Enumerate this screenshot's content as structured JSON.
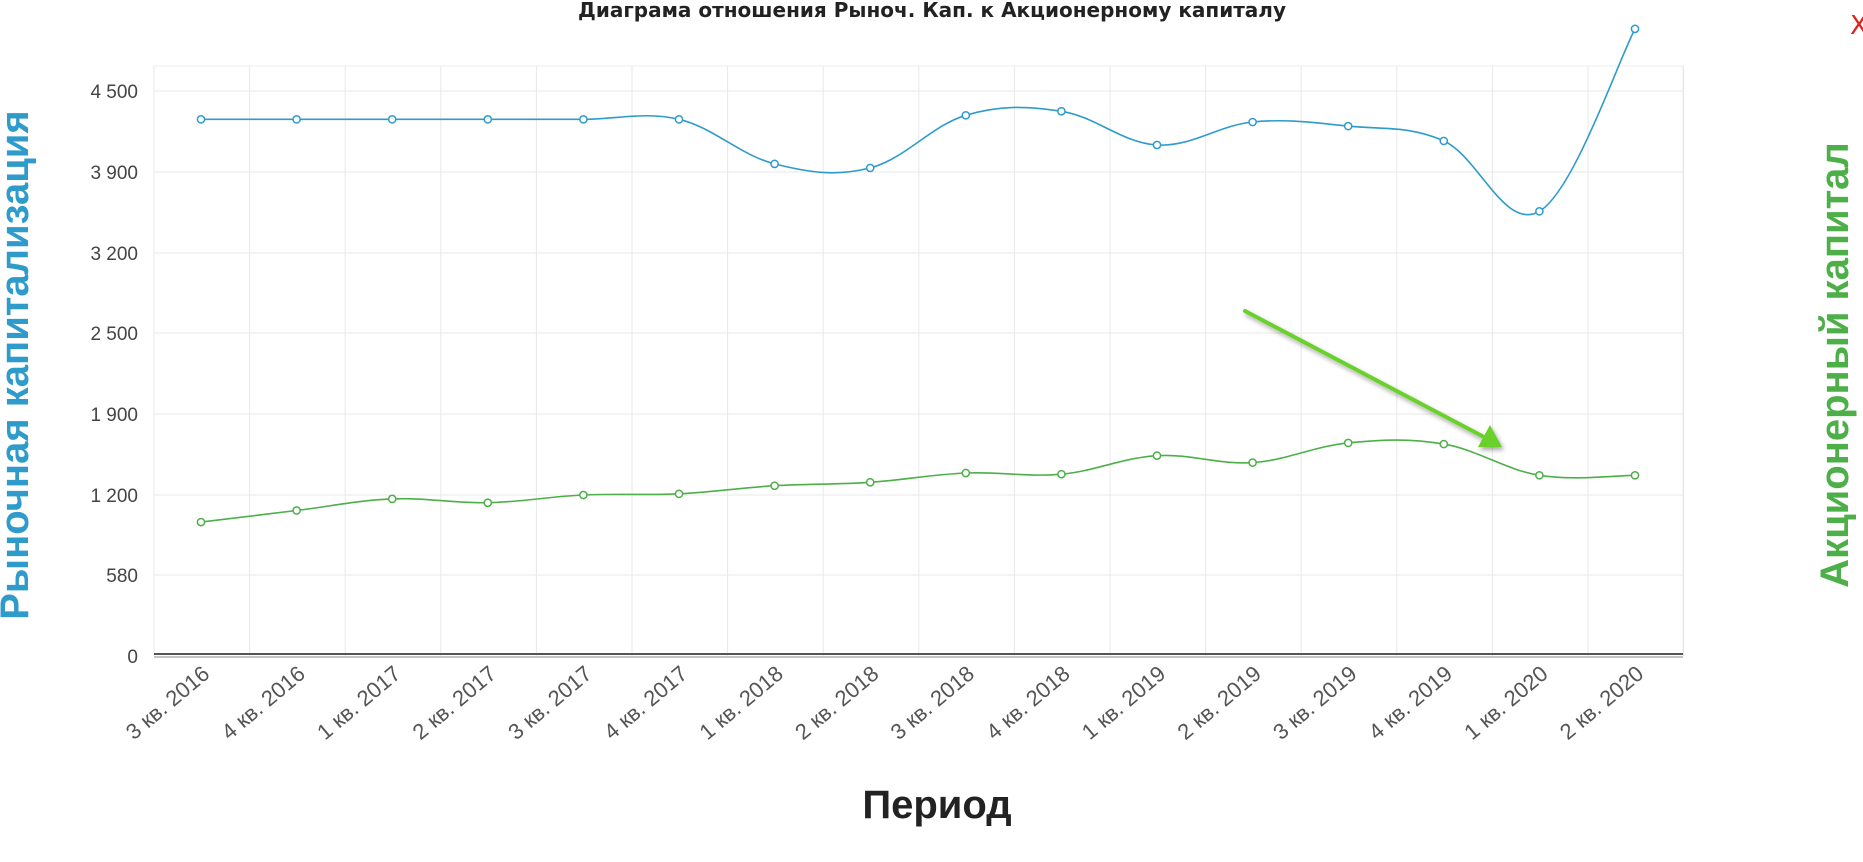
{
  "colors": {
    "market_cap": "#2e9bcb",
    "equity": "#4daf48",
    "close": "#e02020",
    "arrow": "#6ad12a"
  },
  "close_label": "X",
  "chart_data": {
    "type": "line",
    "title": "Диаграма отношения Рыноч. Кап. к Акционерному капиталу",
    "xlabel": "Период",
    "ylabel_left": "Рыночная капитализация",
    "ylabel_right": "Акционерный капитал",
    "yticks": [
      "0",
      "580",
      "1 200",
      "1 900",
      "2 500",
      "3 200",
      "3 900",
      "4 500"
    ],
    "categories": [
      "3 кв. 2016",
      "4 кв. 2016",
      "1 кв. 2017",
      "2 кв. 2017",
      "3 кв. 2017",
      "4 кв. 2017",
      "1 кв. 2018",
      "2 кв. 2018",
      "3 кв. 2018",
      "4 кв. 2018",
      "1 кв. 2019",
      "2 кв. 2019",
      "3 кв. 2019",
      "4 кв. 2019",
      "1 кв. 2020",
      "2 кв. 2020"
    ],
    "series": [
      {
        "key": "market_cap",
        "values": [
          4290,
          4290,
          4290,
          4290,
          4290,
          4290,
          3960,
          3930,
          4320,
          4350,
          4100,
          4270,
          4240,
          4130,
          3560,
          4960
        ]
      },
      {
        "key": "equity",
        "values": [
          990,
          1080,
          1170,
          1140,
          1200,
          1210,
          1280,
          1310,
          1390,
          1380,
          1540,
          1480,
          1650,
          1640,
          1370,
          1370
        ]
      }
    ],
    "grid": true,
    "legend": "none",
    "annotation": "arrow"
  }
}
